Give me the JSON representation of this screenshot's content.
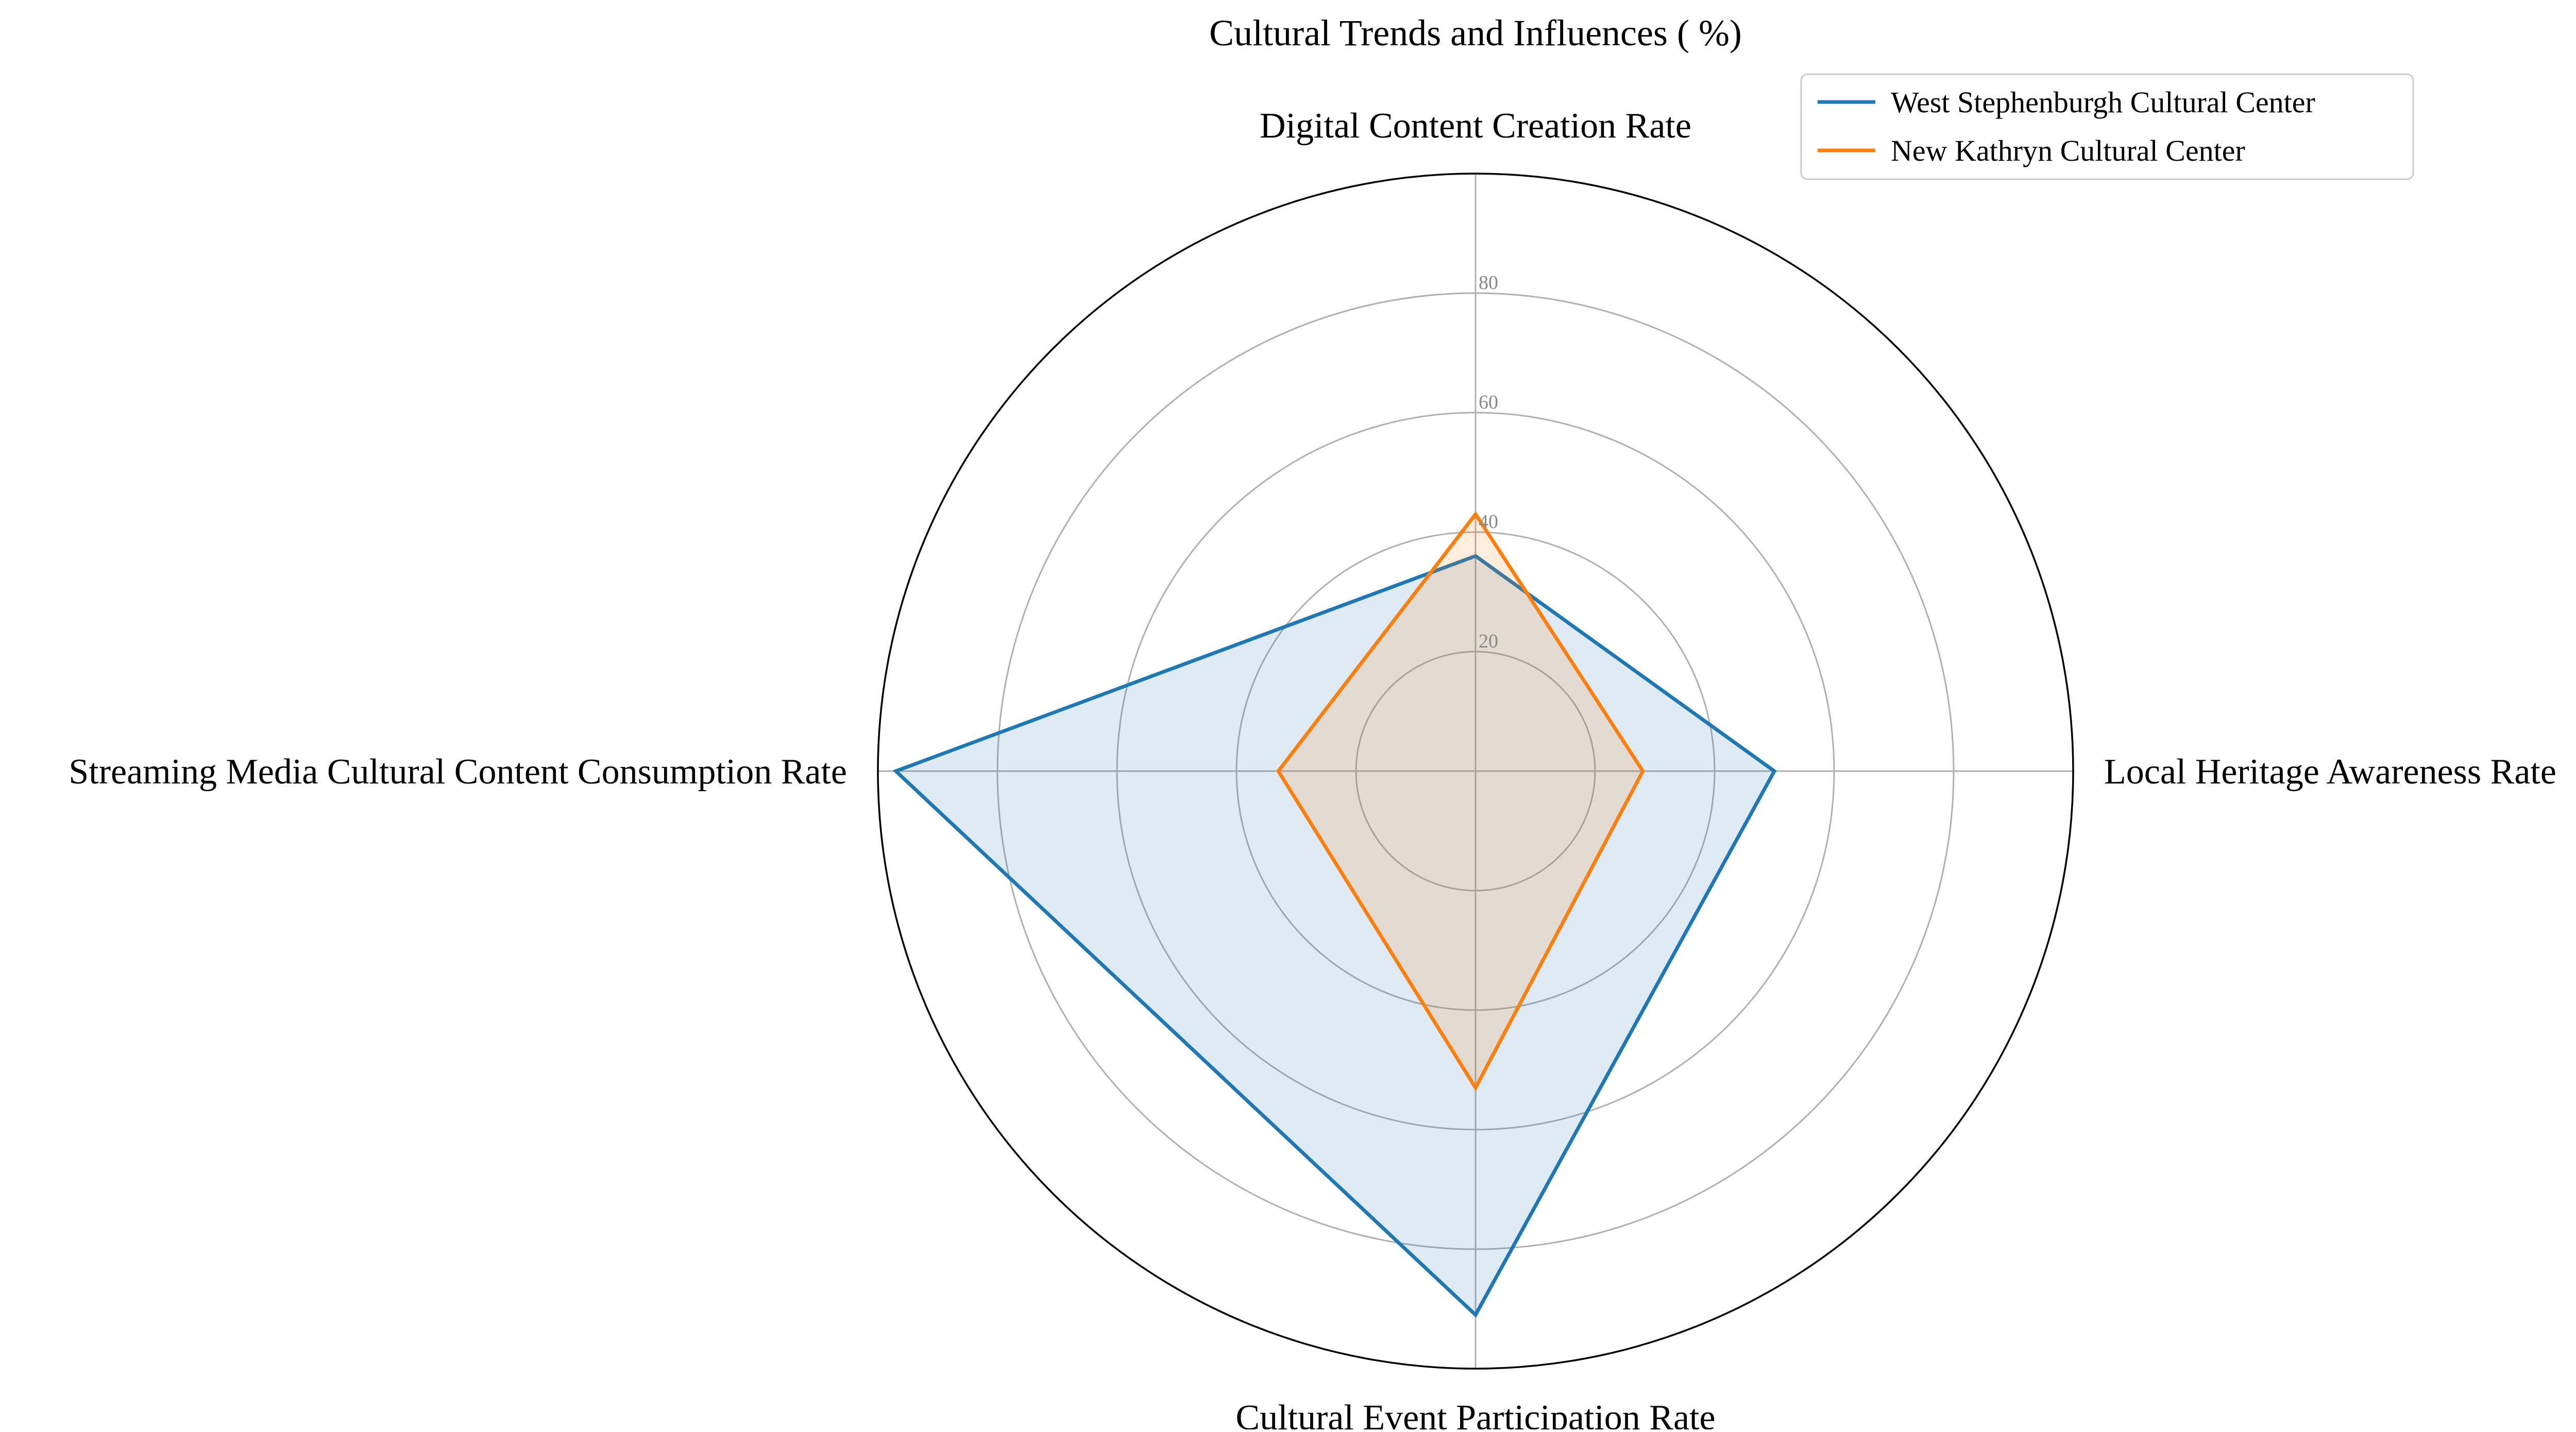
{
  "chart_data": {
    "type": "radar",
    "title": "Cultural Trends and Influences ( %)",
    "categories": [
      "Digital Content Creation Rate",
      "Local Heritage Awareness Rate",
      "Cultural Event Participation Rate",
      "Streaming Media Cultural Content Consumption Rate"
    ],
    "series": [
      {
        "name": "West Stephenburgh Cultural Center",
        "values": [
          36,
          50,
          91,
          97
        ],
        "color": "#1f77b4"
      },
      {
        "name": "New Kathryn Cultural Center",
        "values": [
          43,
          28,
          53,
          33
        ],
        "color": "#ff7f0e"
      }
    ],
    "rlim": [
      0,
      100
    ],
    "rticks": [
      20,
      40,
      60,
      80
    ],
    "rtick_labels": [
      "20",
      "40",
      "60",
      "80"
    ],
    "grid": true,
    "legend_position": "top-right"
  }
}
